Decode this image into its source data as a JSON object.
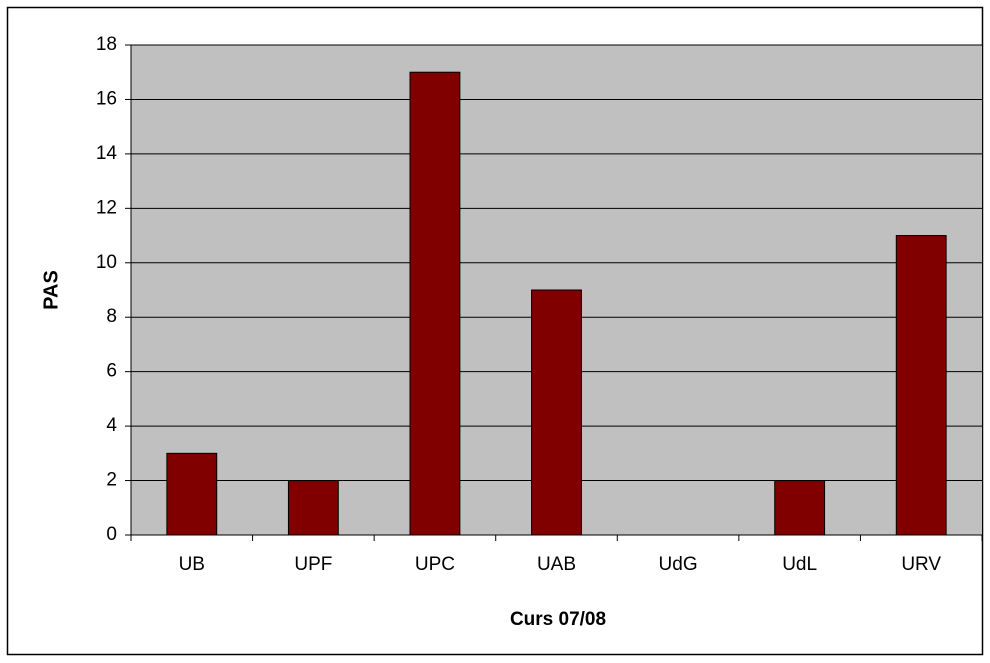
{
  "chart_data": {
    "type": "bar",
    "x_label": "Curs 07/08",
    "y_label": "PAS",
    "categories": [
      "UB",
      "UPF",
      "UPC",
      "UAB",
      "UdG",
      "UdL",
      "URV"
    ],
    "values": [
      3,
      2,
      17,
      9,
      0,
      2,
      11
    ],
    "color": "#800000",
    "plot_background": "#c0c0c0",
    "ylim": [
      0,
      18
    ],
    "yticks": [
      0,
      2,
      4,
      6,
      8,
      10,
      12,
      14,
      16,
      18
    ],
    "grid": true
  }
}
